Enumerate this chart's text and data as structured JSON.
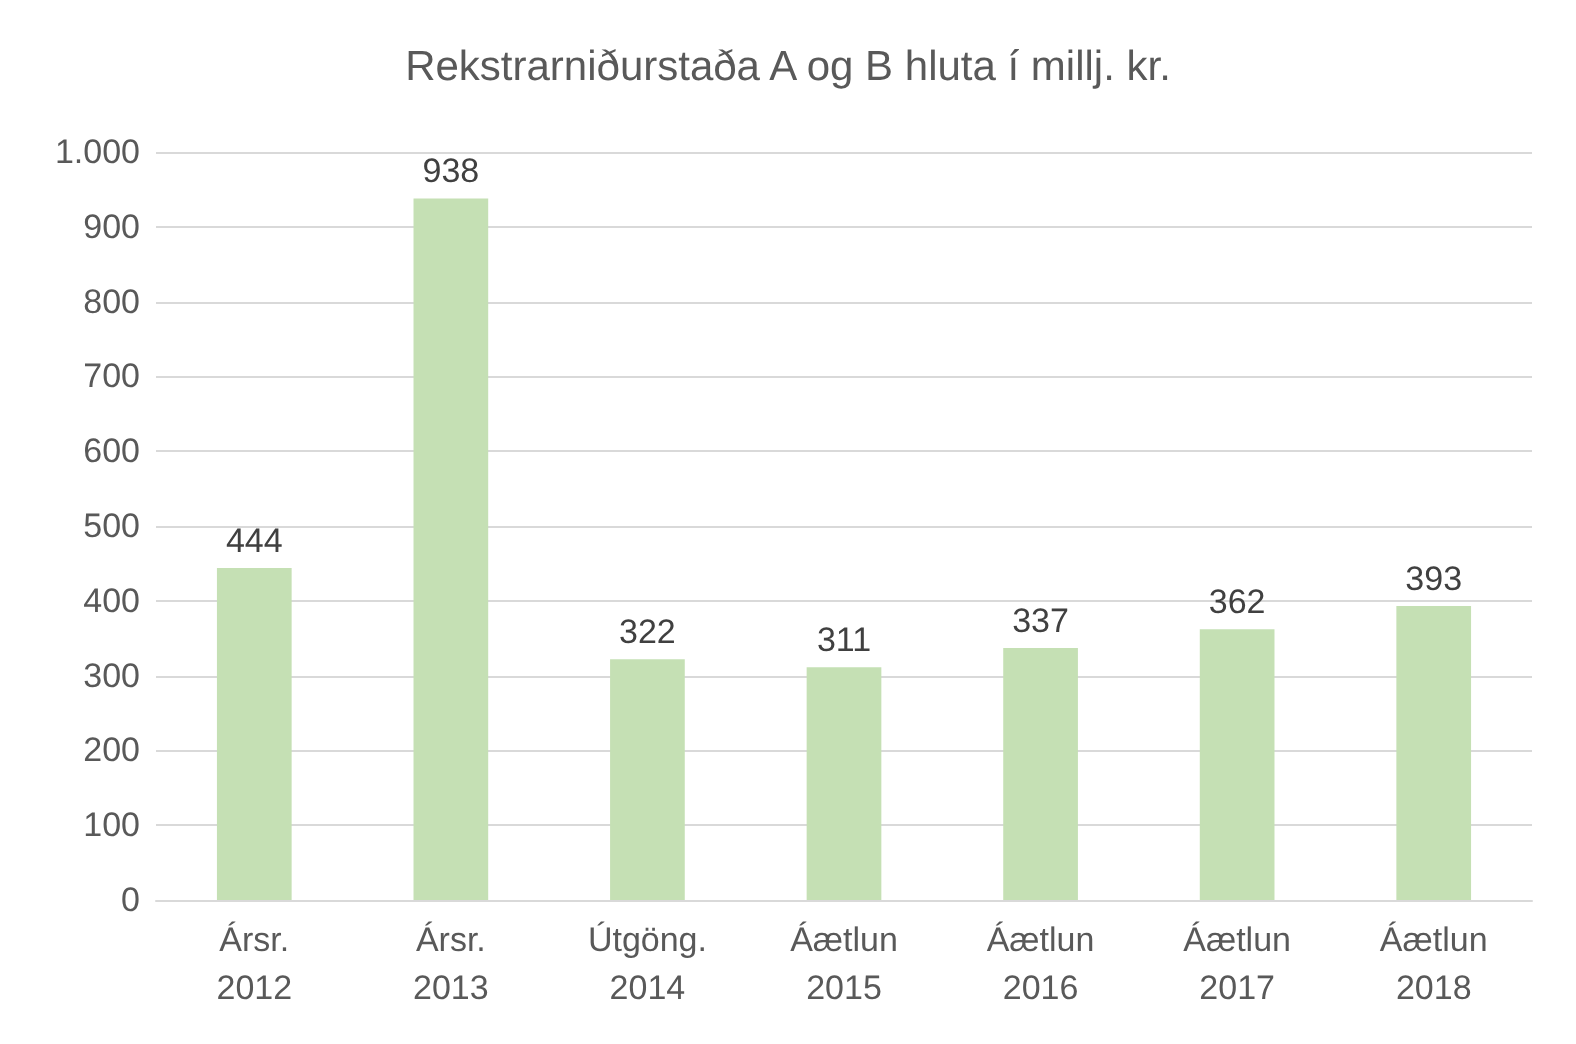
{
  "chart_data": {
    "type": "bar",
    "title": "Rekstrarniðurstaða A og B hluta í millj. kr.",
    "categories": [
      "Ársr.\n2012",
      "Ársr.\n2013",
      "Útgöng.\n2014",
      "Áætlun\n2015",
      "Áætlun\n2016",
      "Áætlun\n2017",
      "Áætlun\n2018"
    ],
    "values": [
      444,
      938,
      322,
      311,
      337,
      362,
      393
    ],
    "color": "#c5e0b4",
    "ylim": [
      0,
      1000
    ],
    "yticks": [
      0,
      100,
      200,
      300,
      400,
      500,
      600,
      700,
      800,
      900,
      {
        "value": 1000,
        "label": "1.000"
      }
    ],
    "grid": "y",
    "data_labels": true
  }
}
